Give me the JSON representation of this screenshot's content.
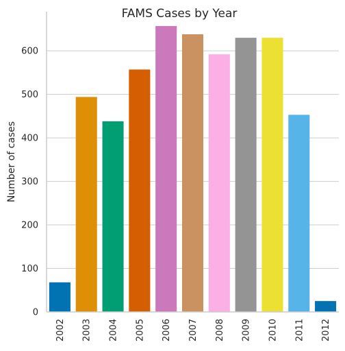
{
  "chart_data": {
    "type": "bar",
    "title": "FAMS Cases by Year",
    "xlabel": "",
    "ylabel": "Number of cases",
    "categories": [
      "2002",
      "2003",
      "2004",
      "2005",
      "2006",
      "2007",
      "2008",
      "2009",
      "2010",
      "2011",
      "2012"
    ],
    "values": [
      68,
      494,
      438,
      557,
      657,
      638,
      592,
      630,
      630,
      453,
      25
    ],
    "ylim": [
      0,
      690
    ],
    "yticks": [
      0,
      100,
      200,
      300,
      400,
      500,
      600
    ],
    "grid": "horizontal",
    "colors": [
      "#0173b2",
      "#de8f05",
      "#029e73",
      "#d55e00",
      "#cc78bc",
      "#ca9161",
      "#fbafe4",
      "#949494",
      "#ece133",
      "#56b4e9",
      "#0173b2"
    ]
  }
}
